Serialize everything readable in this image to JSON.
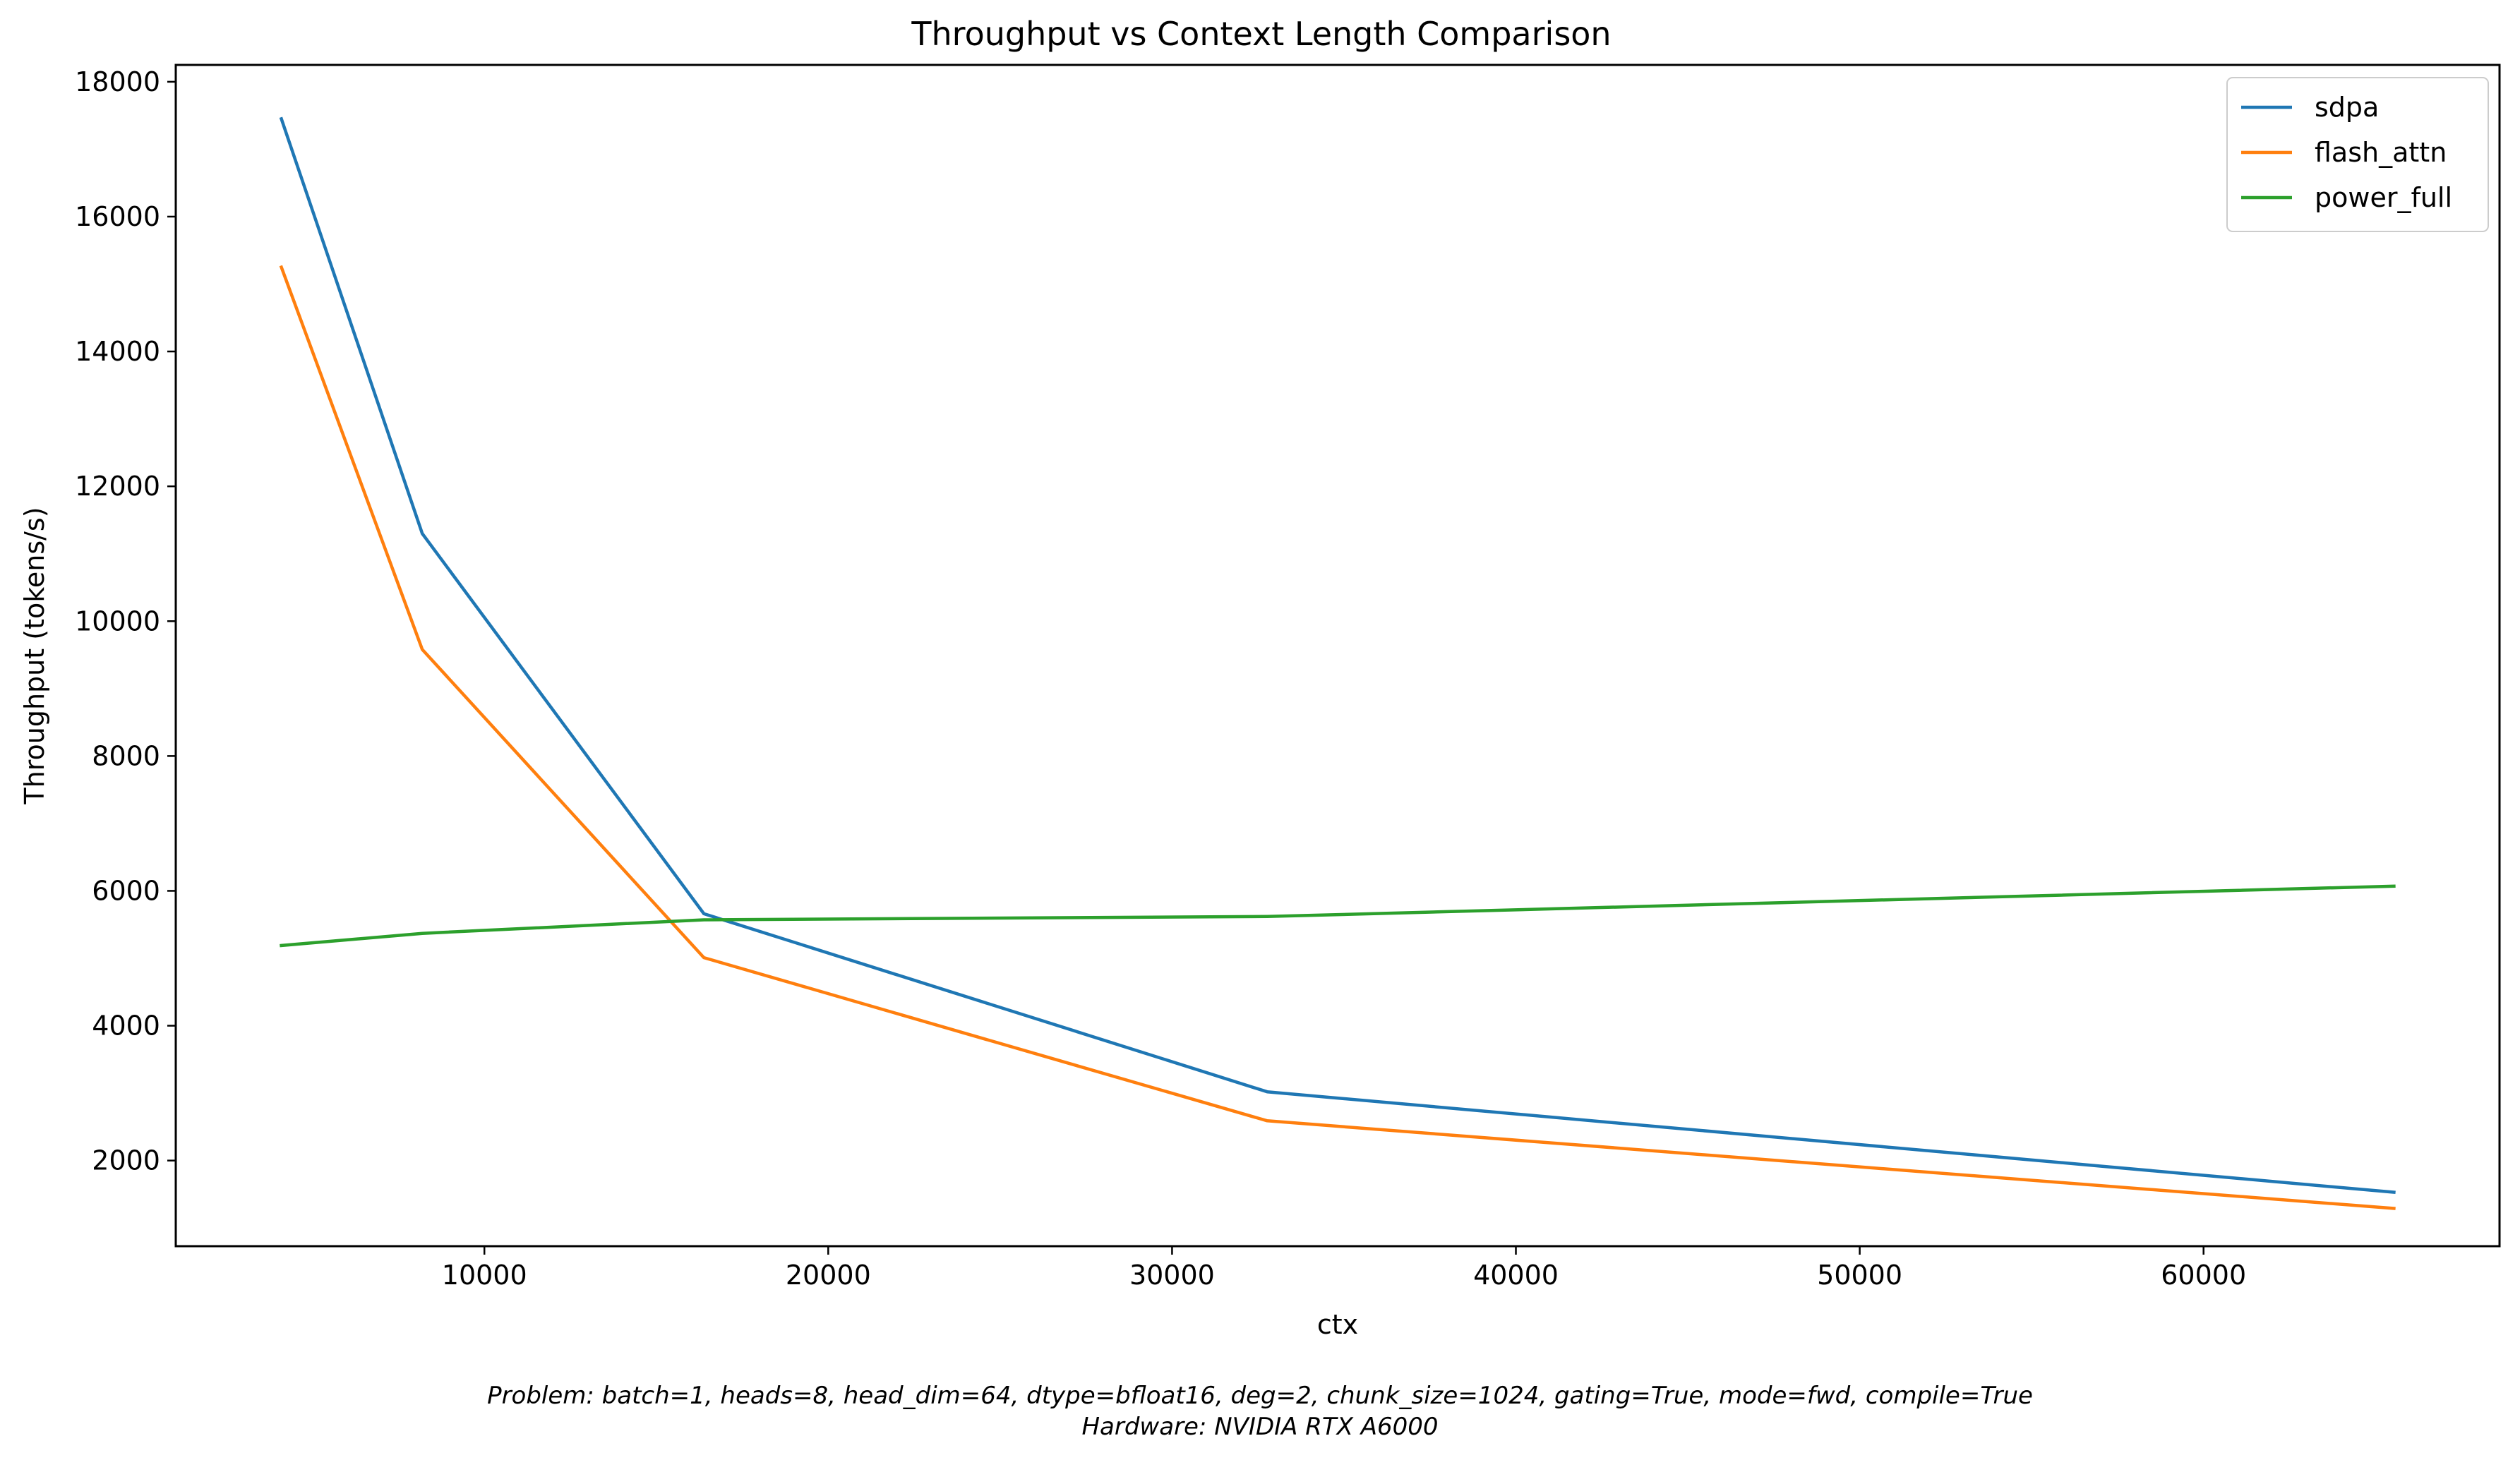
{
  "chart_data": {
    "type": "line",
    "title": "Throughput vs Context Length Comparison",
    "xlabel": "ctx",
    "ylabel": "Throughput (tokens/s)",
    "x": [
      4096,
      8192,
      16384,
      32768,
      65536
    ],
    "xlim": [
      1024,
      68608
    ],
    "ylim": [
      730,
      18250
    ],
    "xticks": [
      10000,
      20000,
      30000,
      40000,
      50000,
      60000
    ],
    "yticks": [
      2000,
      4000,
      6000,
      8000,
      10000,
      12000,
      14000,
      16000,
      18000
    ],
    "grid": false,
    "legend_position": "top-right",
    "series": [
      {
        "name": "sdpa",
        "color": "#1f77b4",
        "values": [
          17450,
          11300,
          5660,
          3020,
          1530
        ]
      },
      {
        "name": "flash_attn",
        "color": "#ff7f0e",
        "values": [
          15250,
          9580,
          5010,
          2590,
          1290
        ]
      },
      {
        "name": "power_full",
        "color": "#2ca02c",
        "values": [
          5190,
          5370,
          5570,
          5620,
          6070
        ]
      }
    ]
  },
  "footnote": {
    "problem": "Problem: batch=1, heads=8, head_dim=64, dtype=bfloat16, deg=2, chunk_size=1024, gating=True, mode=fwd, compile=True",
    "hardware": "Hardware: NVIDIA RTX A6000"
  }
}
